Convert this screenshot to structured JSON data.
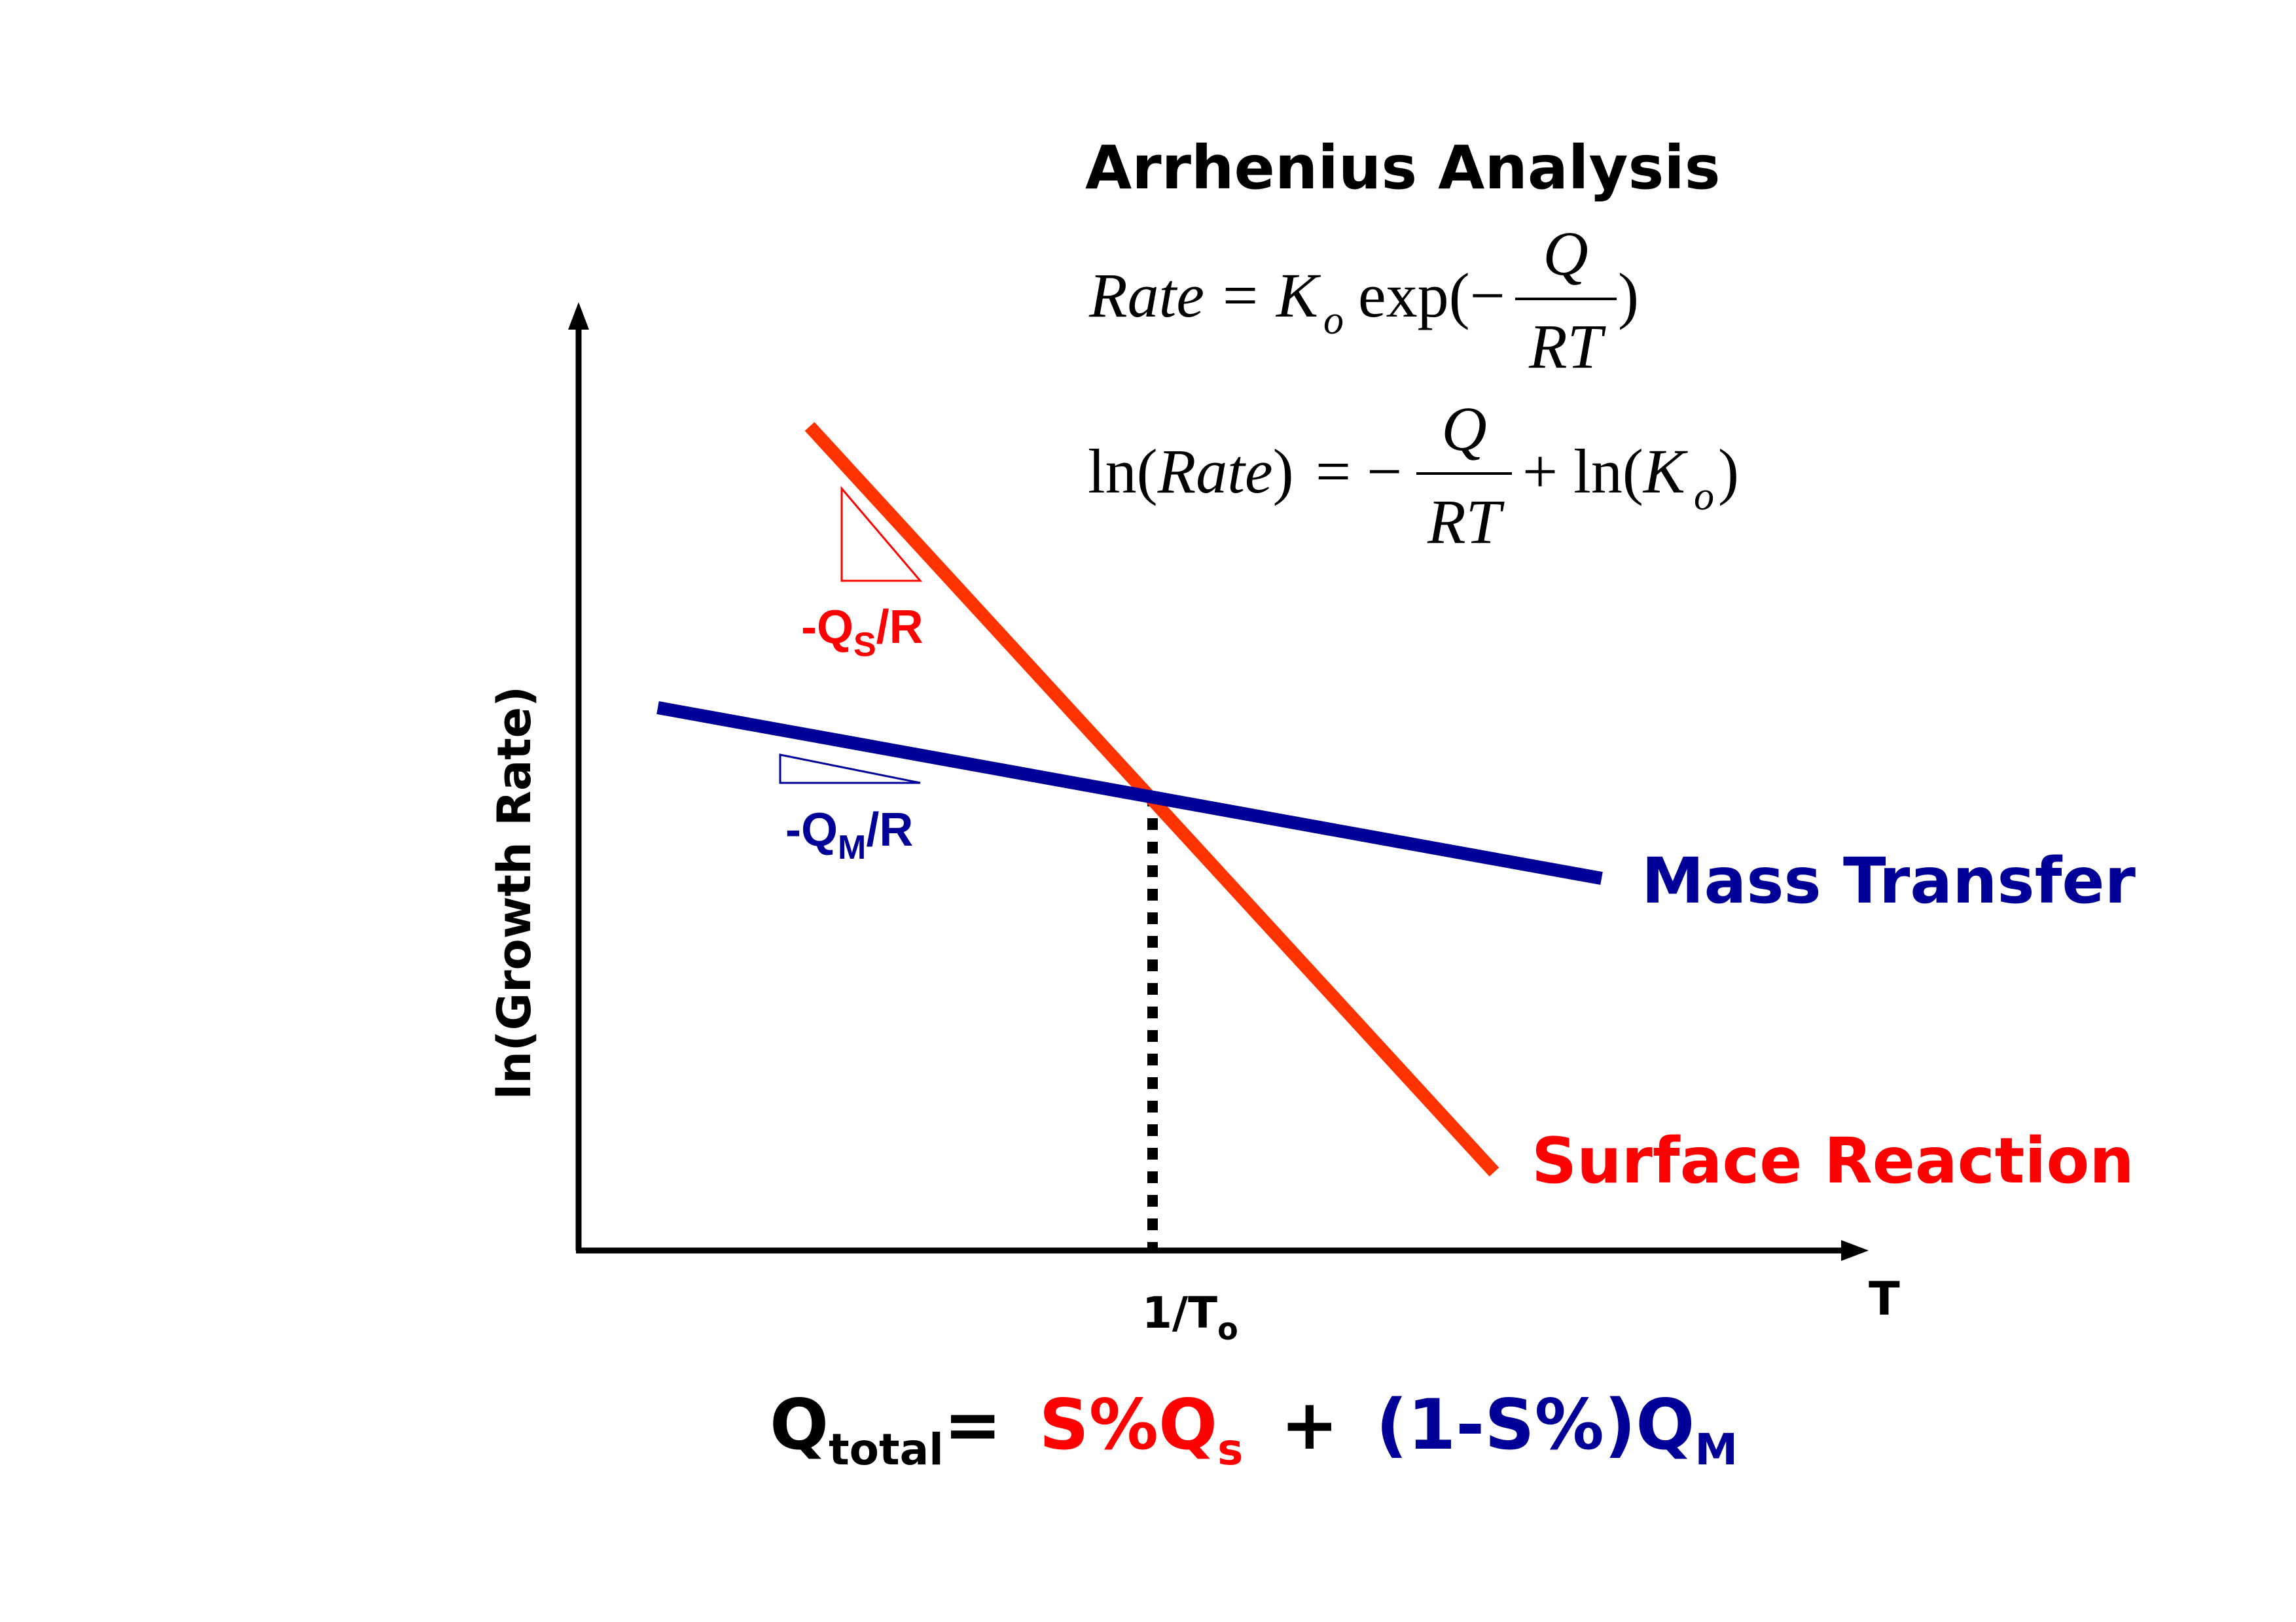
{
  "title": "Arrhenius Analysis",
  "equation1": {
    "lhs": "Rate",
    "eq": "=",
    "k": "K",
    "k_sub": "o",
    "exp": "exp(−",
    "num": "Q",
    "den": "RT",
    "close": ")"
  },
  "equation2": {
    "ln_open": "ln(",
    "lhs": "Rate",
    "ln_close": ")",
    "eq": "= −",
    "num": "Q",
    "den": "RT",
    "plus": "+ ln(",
    "k": "K",
    "k_sub": "o",
    "close": ")"
  },
  "axes": {
    "ylabel": "ln(Growth Rate)",
    "xlabel": "T",
    "x_tick": "1/T",
    "x_tick_sub": "o"
  },
  "slopes": {
    "surface": {
      "prefix": "-Q",
      "sub": "S",
      "suffix": "/R"
    },
    "mass": {
      "prefix": "-Q",
      "sub": "M",
      "suffix": "/R"
    }
  },
  "lines": {
    "mass_transfer": {
      "label": "Mass Transfer",
      "color": "#000099"
    },
    "surface_reaction": {
      "label": "Surface Reaction",
      "color": "#FF3300"
    }
  },
  "bottom_formula": {
    "q": "Q",
    "q_sub": "total",
    "eq": "=",
    "s_part": "S%Q",
    "s_sub": "s",
    "plus": "+",
    "m_part": "(1-S%)Q",
    "m_sub": "M"
  },
  "colors": {
    "red_text": "#FF0000",
    "blue": "#000099",
    "axis": "#000000"
  }
}
